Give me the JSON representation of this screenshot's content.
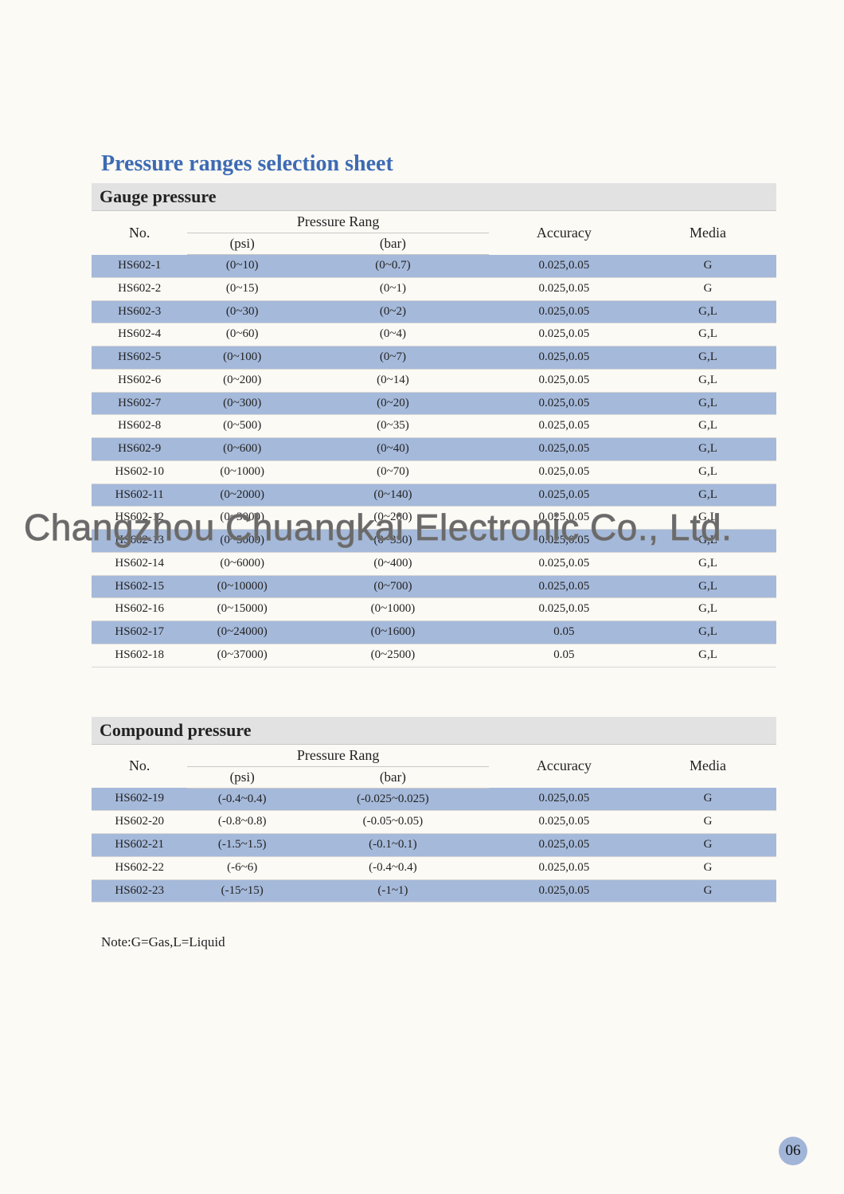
{
  "title": "Pressure ranges selection sheet",
  "title_color": "#3d6bb3",
  "note": "Note:G=Gas,L=Liquid",
  "page_number": "06",
  "watermark": "Changzhou Chuangkai Electronic Co., Ltd.",
  "colors": {
    "background": "#fcfaf5",
    "section_header_bg": "#e2e2e2",
    "row_alt_bg": "#a5b9da",
    "border": "#c8c8c8",
    "page_badge_bg": "#a1b5d8",
    "text": "#222222"
  },
  "sections": [
    {
      "title": "Gauge pressure",
      "columns": {
        "no": "No.",
        "range_group": "Pressure Rang",
        "psi": "(psi)",
        "bar": "(bar)",
        "accuracy": "Accuracy",
        "media": "Media"
      },
      "rows": [
        {
          "no": "HS602-1",
          "psi": "(0~10)",
          "bar": "(0~0.7)",
          "accuracy": "0.025,0.05",
          "media": "G"
        },
        {
          "no": "HS602-2",
          "psi": "(0~15)",
          "bar": "(0~1)",
          "accuracy": "0.025,0.05",
          "media": "G"
        },
        {
          "no": "HS602-3",
          "psi": "(0~30)",
          "bar": "(0~2)",
          "accuracy": "0.025,0.05",
          "media": "G,L"
        },
        {
          "no": "HS602-4",
          "psi": "(0~60)",
          "bar": "(0~4)",
          "accuracy": "0.025,0.05",
          "media": "G,L"
        },
        {
          "no": "HS602-5",
          "psi": "(0~100)",
          "bar": "(0~7)",
          "accuracy": "0.025,0.05",
          "media": "G,L"
        },
        {
          "no": "HS602-6",
          "psi": "(0~200)",
          "bar": "(0~14)",
          "accuracy": "0.025,0.05",
          "media": "G,L"
        },
        {
          "no": "HS602-7",
          "psi": "(0~300)",
          "bar": "(0~20)",
          "accuracy": "0.025,0.05",
          "media": "G,L"
        },
        {
          "no": "HS602-8",
          "psi": "(0~500)",
          "bar": "(0~35)",
          "accuracy": "0.025,0.05",
          "media": "G,L"
        },
        {
          "no": "HS602-9",
          "psi": "(0~600)",
          "bar": "(0~40)",
          "accuracy": "0.025,0.05",
          "media": "G,L"
        },
        {
          "no": "HS602-10",
          "psi": "(0~1000)",
          "bar": "(0~70)",
          "accuracy": "0.025,0.05",
          "media": "G,L"
        },
        {
          "no": "HS602-11",
          "psi": "(0~2000)",
          "bar": "(0~140)",
          "accuracy": "0.025,0.05",
          "media": "G,L"
        },
        {
          "no": "HS602-12",
          "psi": "(0~3000)",
          "bar": "(0~200)",
          "accuracy": "0.025,0.05",
          "media": "G,L"
        },
        {
          "no": "HS602-13",
          "psi": "(0~5000)",
          "bar": "(0~350)",
          "accuracy": "0.025,0.05",
          "media": "G,L"
        },
        {
          "no": "HS602-14",
          "psi": "(0~6000)",
          "bar": "(0~400)",
          "accuracy": "0.025,0.05",
          "media": "G,L"
        },
        {
          "no": "HS602-15",
          "psi": "(0~10000)",
          "bar": "(0~700)",
          "accuracy": "0.025,0.05",
          "media": "G,L"
        },
        {
          "no": "HS602-16",
          "psi": "(0~15000)",
          "bar": "(0~1000)",
          "accuracy": "0.025,0.05",
          "media": "G,L"
        },
        {
          "no": "HS602-17",
          "psi": "(0~24000)",
          "bar": "(0~1600)",
          "accuracy": "0.05",
          "media": "G,L"
        },
        {
          "no": "HS602-18",
          "psi": "(0~37000)",
          "bar": "(0~2500)",
          "accuracy": "0.05",
          "media": "G,L"
        }
      ]
    },
    {
      "title": "Compound pressure",
      "columns": {
        "no": "No.",
        "range_group": "Pressure Rang",
        "psi": "(psi)",
        "bar": "(bar)",
        "accuracy": "Accuracy",
        "media": "Media"
      },
      "rows": [
        {
          "no": "HS602-19",
          "psi": "(-0.4~0.4)",
          "bar": "(-0.025~0.025)",
          "accuracy": "0.025,0.05",
          "media": "G"
        },
        {
          "no": "HS602-20",
          "psi": "(-0.8~0.8)",
          "bar": "(-0.05~0.05)",
          "accuracy": "0.025,0.05",
          "media": "G"
        },
        {
          "no": "HS602-21",
          "psi": "(-1.5~1.5)",
          "bar": "(-0.1~0.1)",
          "accuracy": "0.025,0.05",
          "media": "G"
        },
        {
          "no": "HS602-22",
          "psi": "(-6~6)",
          "bar": "(-0.4~0.4)",
          "accuracy": "0.025,0.05",
          "media": "G"
        },
        {
          "no": "HS602-23",
          "psi": "(-15~15)",
          "bar": "(-1~1)",
          "accuracy": "0.025,0.05",
          "media": "G"
        }
      ]
    }
  ]
}
